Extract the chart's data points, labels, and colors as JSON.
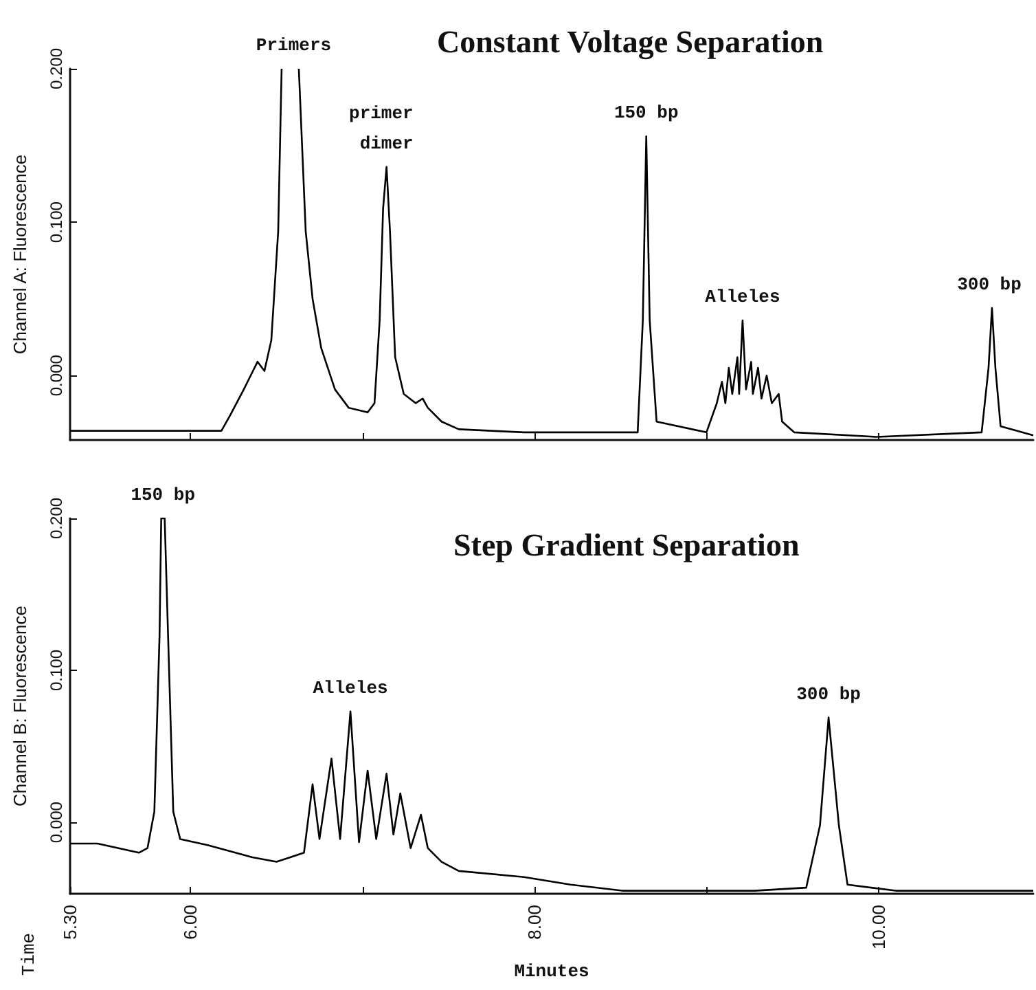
{
  "chart_data": [
    {
      "type": "line",
      "title": "Constant Voltage Separation",
      "ylabel": "Channel A: Fluorescence",
      "color": "#000000",
      "marker": "none",
      "tick_labels": "y",
      "x": [
        5.3,
        6.18,
        6.23,
        6.31,
        6.35,
        6.39,
        6.43,
        6.47,
        6.51,
        6.53,
        6.6,
        6.63,
        6.67,
        6.71,
        6.76,
        6.84,
        6.92,
        7.03,
        7.07,
        7.1,
        7.12,
        7.14,
        7.16,
        7.19,
        7.24,
        7.31,
        7.35,
        7.38,
        7.46,
        7.56,
        7.94,
        8.6,
        8.63,
        8.65,
        8.67,
        8.71,
        9.0,
        9.06,
        9.09,
        9.11,
        9.13,
        9.15,
        9.18,
        9.19,
        9.21,
        9.23,
        9.26,
        9.27,
        9.3,
        9.32,
        9.35,
        9.38,
        9.42,
        9.44,
        9.51,
        9.99,
        10.6,
        10.64,
        10.66,
        10.68,
        10.71,
        10.9
      ],
      "values": [
        -0.036,
        -0.036,
        -0.026,
        -0.009,
        0.0,
        0.009,
        0.003,
        0.023,
        0.094,
        0.2,
        null,
        0.2,
        0.094,
        0.05,
        0.018,
        -0.009,
        -0.021,
        -0.024,
        -0.018,
        0.036,
        0.109,
        0.136,
        0.094,
        0.012,
        -0.012,
        -0.018,
        -0.015,
        -0.021,
        -0.03,
        -0.035,
        -0.037,
        -0.037,
        0.036,
        0.156,
        0.036,
        -0.03,
        -0.037,
        -0.018,
        -0.004,
        -0.018,
        0.005,
        -0.012,
        0.012,
        -0.012,
        0.036,
        -0.009,
        0.009,
        -0.012,
        0.005,
        -0.015,
        0.0,
        -0.018,
        -0.012,
        -0.03,
        -0.037,
        -0.04,
        -0.037,
        0.005,
        0.044,
        0.005,
        -0.033,
        -0.039
      ],
      "xlim": [
        5.3,
        10.9
      ],
      "xticks": [
        {
          "value": 6,
          "label": null
        },
        {
          "value": 7,
          "label": null
        },
        {
          "value": 8,
          "label": null
        },
        {
          "value": 9,
          "label": null
        },
        {
          "value": 10,
          "label": null
        }
      ],
      "ylim": [
        -0.042,
        0.2
      ],
      "yticks": [
        {
          "value": 0,
          "label": "0.000"
        },
        {
          "value": 0.1,
          "label": "0.100"
        },
        {
          "value": 0.2,
          "label": "0.200"
        }
      ],
      "annotations": [
        {
          "text": "Primers",
          "x": 6.6,
          "y": 0.2
        },
        {
          "text": "primer dimer",
          "x": 7.14,
          "y": 0.136
        },
        {
          "text": "150 bp",
          "x": 8.65,
          "y": 0.156
        },
        {
          "text": "Alleles",
          "x": 9.21,
          "y": 0.036
        },
        {
          "text": "300 bp",
          "x": 10.66,
          "y": 0.044
        }
      ]
    },
    {
      "type": "line",
      "title": "Step Gradient Separation",
      "xlabel": "Minutes",
      "ylabel": "Channel B: Fluorescence",
      "color": "#000000",
      "marker": "none",
      "x": [
        5.3,
        5.46,
        5.7,
        5.75,
        5.79,
        5.82,
        5.83,
        5.85,
        5.87,
        5.9,
        5.94,
        6.1,
        6.36,
        6.5,
        6.58,
        6.66,
        6.71,
        6.75,
        6.82,
        6.87,
        6.93,
        6.98,
        7.03,
        7.08,
        7.14,
        7.18,
        7.22,
        7.28,
        7.34,
        7.38,
        7.46,
        7.56,
        7.94,
        8.21,
        8.51,
        9.28,
        9.58,
        9.66,
        9.71,
        9.77,
        9.82,
        10.1,
        10.5,
        10.9
      ],
      "values": [
        -0.014,
        -0.014,
        -0.02,
        -0.017,
        0.007,
        0.122,
        0.2,
        0.2,
        0.122,
        0.007,
        -0.011,
        -0.015,
        -0.023,
        -0.026,
        -0.023,
        -0.02,
        0.025,
        -0.011,
        0.042,
        -0.011,
        0.073,
        -0.013,
        0.034,
        -0.011,
        0.032,
        -0.008,
        0.019,
        -0.017,
        0.005,
        -0.017,
        -0.026,
        -0.032,
        -0.036,
        -0.041,
        -0.045,
        -0.045,
        -0.043,
        -0.002,
        0.069,
        -0.002,
        -0.041,
        -0.045,
        -0.045,
        -0.045
      ],
      "xlim": [
        5.3,
        10.9
      ],
      "xticks": [
        {
          "value": 5.3,
          "label": "5.30"
        },
        {
          "value": 6,
          "label": "6.00"
        },
        {
          "value": 7,
          "label": null
        },
        {
          "value": 8,
          "label": "8.00"
        },
        {
          "value": 9,
          "label": null
        },
        {
          "value": 10,
          "label": "10.00"
        }
      ],
      "ylim": [
        -0.047,
        0.2
      ],
      "yticks": [
        {
          "value": 0,
          "label": "0.000"
        },
        {
          "value": 0.1,
          "label": "0.100"
        },
        {
          "value": 0.2,
          "label": "0.200"
        }
      ],
      "annotations": [
        {
          "text": "150 bp",
          "x": 5.84,
          "y": 0.2
        },
        {
          "text": "Alleles",
          "x": 6.93,
          "y": 0.073
        },
        {
          "text": "300 bp",
          "x": 9.71,
          "y": 0.069
        },
        "Time"
      ]
    }
  ]
}
